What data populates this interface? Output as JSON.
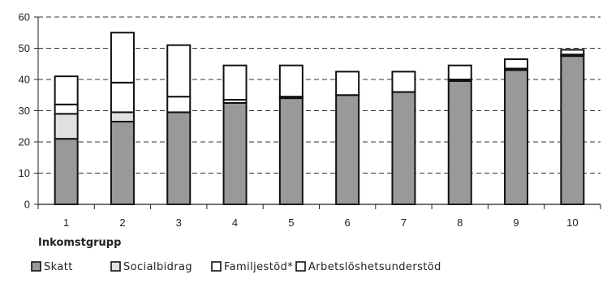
{
  "chart_data": {
    "type": "bar",
    "stacked": true,
    "categories": [
      "1",
      "2",
      "3",
      "4",
      "5",
      "6",
      "7",
      "8",
      "9",
      "10"
    ],
    "series": [
      {
        "name": "Skatt",
        "color": "#999999",
        "values": [
          21,
          26.5,
          29.5,
          32.5,
          34,
          35,
          36,
          39.5,
          43,
          47.5
        ]
      },
      {
        "name": "Socialbidrag",
        "color": "#e0e0e0",
        "values": [
          8,
          3,
          0,
          0,
          0,
          0,
          0,
          0,
          0,
          0
        ]
      },
      {
        "name": "Familjestöd*",
        "color": "#ffffff",
        "values": [
          3,
          9.5,
          5,
          1,
          0.5,
          0,
          0,
          0.5,
          0.5,
          0.5
        ]
      },
      {
        "name": "Arbetslöshetsunderstöd",
        "color": "#ffffff",
        "values": [
          9,
          16,
          16.5,
          11,
          10,
          7.5,
          6.5,
          4.5,
          3,
          1.5
        ]
      }
    ],
    "xlabel": "Inkomstgrupp",
    "ylabel": "",
    "ylim": [
      0,
      60
    ],
    "yticks": [
      "0",
      "10",
      "20",
      "30",
      "40",
      "50",
      "60"
    ],
    "grid": "horizontal dashed",
    "legend_position": "bottom-left"
  }
}
